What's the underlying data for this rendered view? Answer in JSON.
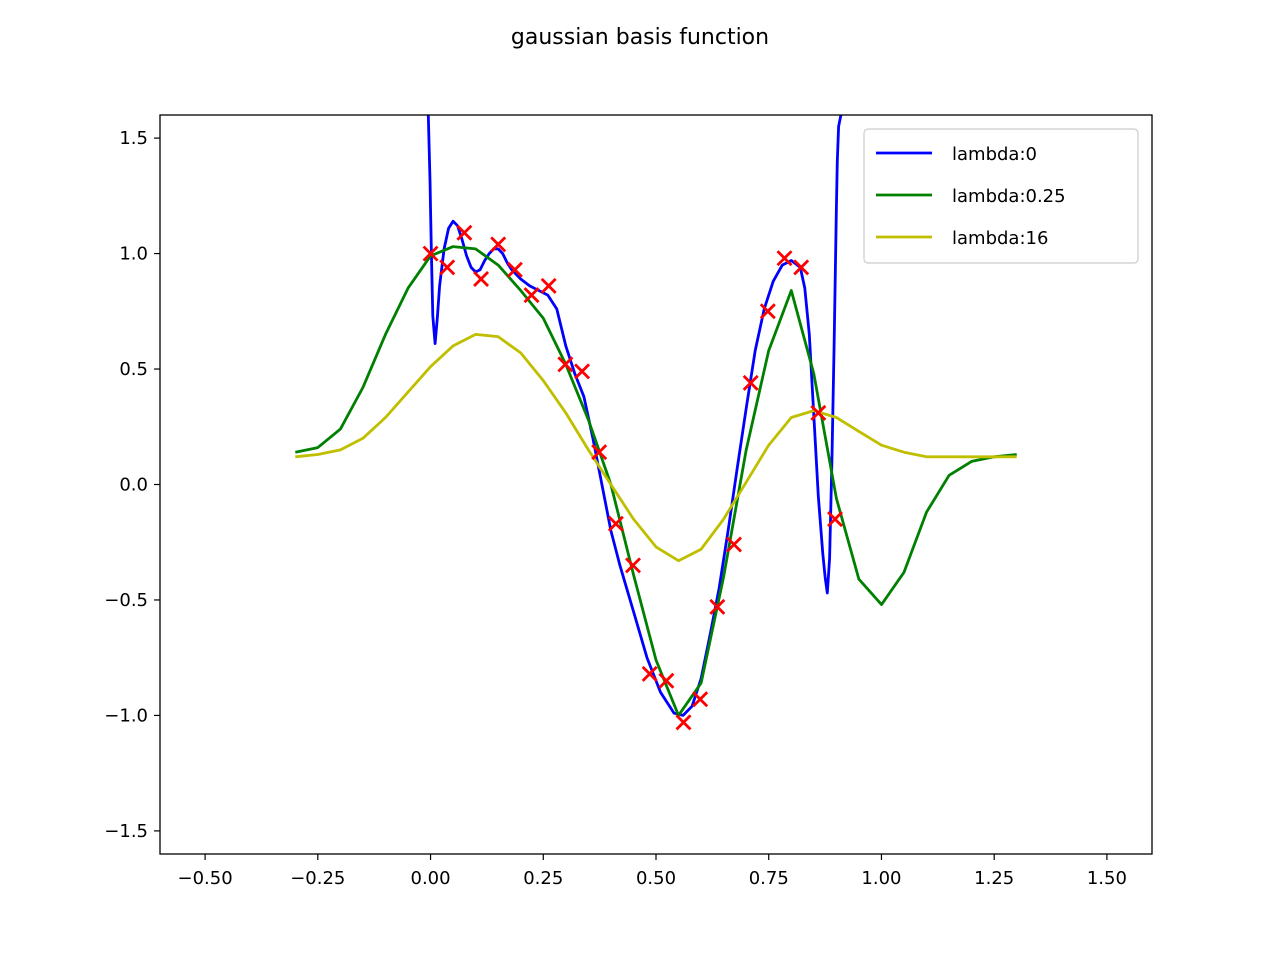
{
  "chart_data": {
    "type": "line",
    "title": "gaussian basis function",
    "xlabel": "",
    "ylabel": "",
    "xlim": [
      -0.6,
      1.6
    ],
    "ylim": [
      -1.6,
      1.6
    ],
    "xticks": [
      -0.5,
      -0.25,
      0.0,
      0.25,
      0.5,
      0.75,
      1.0,
      1.25,
      1.5
    ],
    "xtick_labels": [
      "−0.50",
      "−0.25",
      "0.00",
      "0.25",
      "0.50",
      "0.75",
      "1.00",
      "1.25",
      "1.50"
    ],
    "yticks": [
      -1.5,
      -1.0,
      -0.5,
      0.0,
      0.5,
      1.0,
      1.5
    ],
    "ytick_labels": [
      "−1.5",
      "−1.0",
      "−0.5",
      "0.0",
      "0.5",
      "1.0",
      "1.5"
    ],
    "grid": false,
    "legend_position": "top-right",
    "series": [
      {
        "name": "lambda:0",
        "color": "#0000ff",
        "x": [
          -0.005,
          -0.003,
          -0.001,
          0.0,
          0.002,
          0.005,
          0.01,
          0.015,
          0.02,
          0.03,
          0.04,
          0.05,
          0.06,
          0.07,
          0.08,
          0.09,
          0.1,
          0.11,
          0.12,
          0.13,
          0.14,
          0.15,
          0.16,
          0.17,
          0.18,
          0.2,
          0.22,
          0.24,
          0.26,
          0.28,
          0.3,
          0.32,
          0.34,
          0.36,
          0.38,
          0.4,
          0.42,
          0.45,
          0.48,
          0.51,
          0.54,
          0.56,
          0.58,
          0.6,
          0.62,
          0.64,
          0.66,
          0.68,
          0.7,
          0.72,
          0.74,
          0.76,
          0.78,
          0.8,
          0.82,
          0.83,
          0.84,
          0.85,
          0.86,
          0.87,
          0.875,
          0.88,
          0.885,
          0.89,
          0.895,
          0.9,
          0.902,
          0.905,
          0.91,
          0.913
        ],
        "y": [
          1.6,
          1.45,
          1.3,
          1.2,
          1.0,
          0.73,
          0.61,
          0.72,
          0.86,
          1.02,
          1.11,
          1.14,
          1.12,
          1.06,
          0.99,
          0.94,
          0.92,
          0.93,
          0.97,
          1.0,
          1.02,
          1.02,
          1.0,
          0.96,
          0.93,
          0.89,
          0.86,
          0.84,
          0.82,
          0.76,
          0.6,
          0.48,
          0.38,
          0.2,
          0.0,
          -0.2,
          -0.35,
          -0.55,
          -0.75,
          -0.9,
          -0.99,
          -1.0,
          -0.96,
          -0.84,
          -0.65,
          -0.45,
          -0.2,
          0.07,
          0.33,
          0.58,
          0.76,
          0.88,
          0.95,
          0.97,
          0.94,
          0.85,
          0.65,
          0.3,
          -0.05,
          -0.3,
          -0.4,
          -0.47,
          -0.32,
          0.1,
          0.6,
          1.2,
          1.4,
          1.55,
          1.6,
          1.6
        ]
      },
      {
        "name": "lambda:0.25",
        "color": "#008000",
        "x": [
          -0.3,
          -0.25,
          -0.2,
          -0.15,
          -0.1,
          -0.05,
          0.0,
          0.05,
          0.1,
          0.15,
          0.2,
          0.25,
          0.3,
          0.35,
          0.4,
          0.45,
          0.5,
          0.55,
          0.6,
          0.65,
          0.7,
          0.75,
          0.8,
          0.85,
          0.9,
          0.95,
          1.0,
          1.05,
          1.1,
          1.15,
          1.2,
          1.25,
          1.3
        ],
        "y": [
          0.14,
          0.16,
          0.24,
          0.42,
          0.65,
          0.85,
          0.99,
          1.03,
          1.02,
          0.95,
          0.84,
          0.72,
          0.52,
          0.28,
          0.0,
          -0.39,
          -0.76,
          -1.0,
          -0.86,
          -0.4,
          0.15,
          0.58,
          0.84,
          0.48,
          -0.06,
          -0.41,
          -0.52,
          -0.38,
          -0.12,
          0.04,
          0.1,
          0.12,
          0.13
        ]
      },
      {
        "name": "lambda:16",
        "color": "#bfbf00",
        "x": [
          -0.3,
          -0.25,
          -0.2,
          -0.15,
          -0.1,
          -0.05,
          0.0,
          0.05,
          0.1,
          0.15,
          0.2,
          0.25,
          0.3,
          0.35,
          0.4,
          0.45,
          0.5,
          0.55,
          0.6,
          0.65,
          0.7,
          0.75,
          0.8,
          0.85,
          0.9,
          0.95,
          1.0,
          1.05,
          1.1,
          1.15,
          1.2,
          1.25,
          1.3
        ],
        "y": [
          0.12,
          0.13,
          0.15,
          0.2,
          0.29,
          0.4,
          0.51,
          0.6,
          0.65,
          0.64,
          0.57,
          0.45,
          0.31,
          0.15,
          0.0,
          -0.15,
          -0.27,
          -0.33,
          -0.28,
          -0.15,
          0.01,
          0.17,
          0.29,
          0.32,
          0.29,
          0.23,
          0.17,
          0.14,
          0.12,
          0.12,
          0.12,
          0.12,
          0.12
        ]
      }
    ],
    "points": {
      "color": "#ff0000",
      "marker": "x",
      "x": [
        0.0,
        0.037,
        0.075,
        0.112,
        0.15,
        0.187,
        0.224,
        0.262,
        0.299,
        0.336,
        0.374,
        0.411,
        0.449,
        0.486,
        0.523,
        0.561,
        0.598,
        0.636,
        0.673,
        0.71,
        0.748,
        0.785,
        0.822,
        0.86,
        0.897
      ],
      "y": [
        1.0,
        0.94,
        1.09,
        0.89,
        1.04,
        0.93,
        0.82,
        0.86,
        0.52,
        0.49,
        0.14,
        -0.17,
        -0.35,
        -0.82,
        -0.85,
        -1.03,
        -0.93,
        -0.53,
        -0.26,
        0.44,
        0.75,
        0.98,
        0.94,
        0.31,
        -0.15
      ]
    }
  }
}
